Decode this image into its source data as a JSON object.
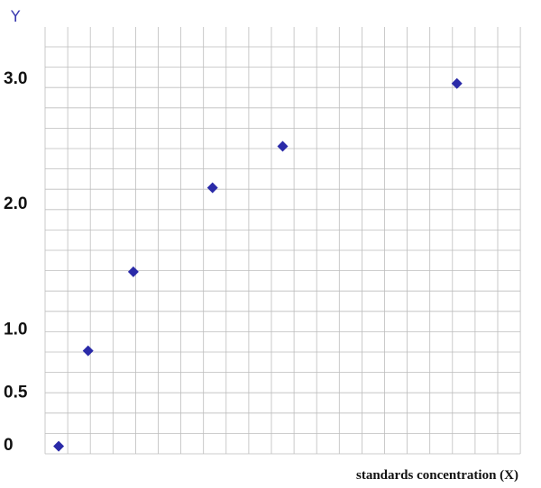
{
  "chart_data": {
    "type": "scatter",
    "title": "",
    "xlabel": "standards concentration (X)",
    "ylabel": "Y",
    "y_ticks": [
      {
        "value": 0,
        "label": "0"
      },
      {
        "value": 0.5,
        "label": "0.5"
      },
      {
        "value": 1.0,
        "label": "1.0"
      },
      {
        "value": 2.0,
        "label": "2.0"
      },
      {
        "value": 3.0,
        "label": "3.0"
      }
    ],
    "ylim": [
      0,
      3.4
    ],
    "xlim": [
      0,
      21
    ],
    "grid": true,
    "colors": {
      "marker": "#2a2aa8",
      "grid": "#bdbdbd",
      "text": "#111111",
      "y_title": "#3b3bb0"
    },
    "series": [
      {
        "points": [
          {
            "x": 0.6,
            "y": 0.06
          },
          {
            "x": 1.9,
            "y": 0.82
          },
          {
            "x": 3.9,
            "y": 1.45
          },
          {
            "x": 7.4,
            "y": 2.12
          },
          {
            "x": 10.5,
            "y": 2.45
          },
          {
            "x": 18.2,
            "y": 2.95
          }
        ]
      }
    ]
  }
}
